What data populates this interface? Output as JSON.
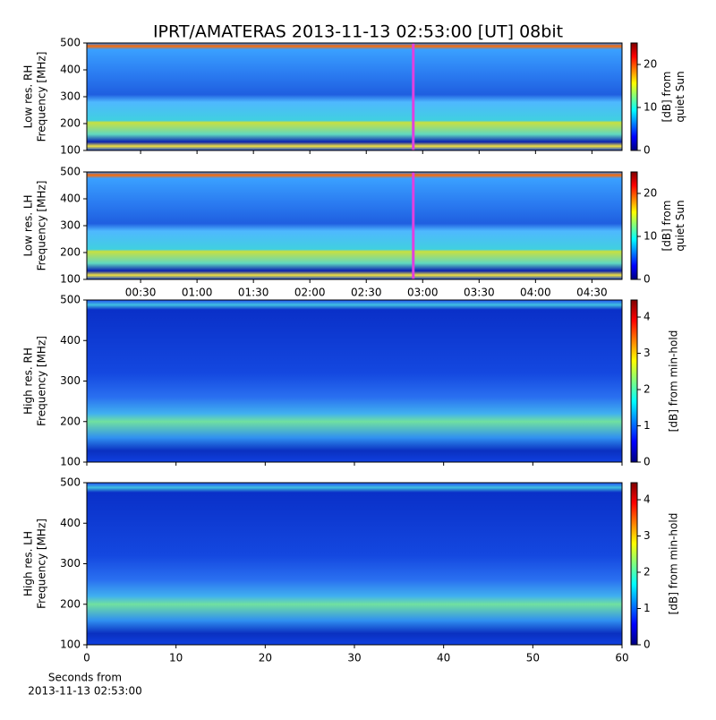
{
  "title": "IPRT/AMATERAS 2013-11-13 02:53:00 [UT]   08bit",
  "chart_data": [
    {
      "type": "heatmap",
      "ylabel": [
        "Low res. RH",
        "Frequency [MHz]"
      ],
      "ylim": [
        100,
        500
      ],
      "yticks": [
        100,
        200,
        300,
        400,
        500
      ],
      "xlim": [
        1.4,
        286
      ],
      "xticks": [
        30,
        60,
        90,
        120,
        150,
        180,
        210,
        240,
        270
      ],
      "xtick_labels": false,
      "highlight_x": 175,
      "highlight_color": "#e040e0",
      "colorbar": {
        "label": [
          "[dB] from",
          "quiet Sun"
        ],
        "clim": [
          0,
          25
        ],
        "ticks": [
          0,
          10,
          20
        ]
      }
    },
    {
      "type": "heatmap",
      "ylabel": [
        "Low res. LH",
        "Frequency [MHz]"
      ],
      "ylim": [
        100,
        500
      ],
      "yticks": [
        100,
        200,
        300,
        400,
        500
      ],
      "xlim": [
        1.4,
        286
      ],
      "xticks": [
        {
          "value": 30,
          "label": "00:30"
        },
        {
          "value": 60,
          "label": "01:00"
        },
        {
          "value": 90,
          "label": "01:30"
        },
        {
          "value": 120,
          "label": "02:00"
        },
        {
          "value": 150,
          "label": "02:30"
        },
        {
          "value": 180,
          "label": "03:00"
        },
        {
          "value": 210,
          "label": "03:30"
        },
        {
          "value": 240,
          "label": "04:00"
        },
        {
          "value": 270,
          "label": "04:30"
        }
      ],
      "xtick_labels": true,
      "highlight_x": 175,
      "highlight_color": "#e040e0",
      "colorbar": {
        "label": [
          "[dB] from",
          "quiet Sun"
        ],
        "clim": [
          0,
          25
        ],
        "ticks": [
          0,
          10,
          20
        ]
      }
    },
    {
      "type": "heatmap",
      "ylabel": [
        "High res. RH",
        "Frequency [MHz]"
      ],
      "ylim": [
        100,
        500
      ],
      "yticks": [
        100,
        200,
        300,
        400,
        500
      ],
      "xlim": [
        0,
        60
      ],
      "xticks": [
        0,
        10,
        20,
        30,
        40,
        50,
        60
      ],
      "xtick_labels": false,
      "colorbar": {
        "label": [
          "[dB] from min-hold"
        ],
        "clim": [
          0,
          4.47
        ],
        "ticks": [
          0,
          1,
          2,
          3,
          4
        ]
      }
    },
    {
      "type": "heatmap",
      "ylabel": [
        "High res. LH",
        "Frequency [MHz]"
      ],
      "ylim": [
        100,
        500
      ],
      "yticks": [
        100,
        200,
        300,
        400,
        500
      ],
      "xlim": [
        0,
        60
      ],
      "xticks": [
        0,
        10,
        20,
        30,
        40,
        50,
        60
      ],
      "xtick_labels": true,
      "xlabel": [
        "Seconds from",
        "2013-11-13 02:53:00"
      ],
      "colorbar": {
        "label": [
          "[dB] from min-hold"
        ],
        "clim": [
          0,
          4.47
        ],
        "ticks": [
          0,
          1,
          2,
          3,
          4
        ]
      }
    }
  ]
}
